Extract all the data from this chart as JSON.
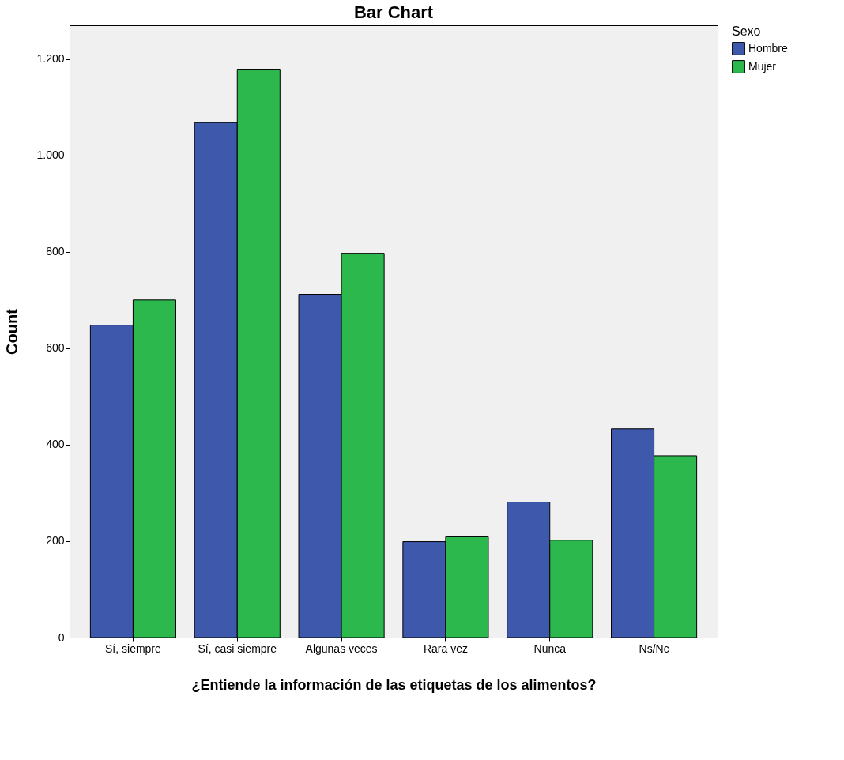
{
  "chart_data": {
    "type": "bar",
    "title": "Bar Chart",
    "xlabel": "¿Entiende la información de las etiquetas de los alimentos?",
    "ylabel": "Count",
    "legend_title": "Sexo",
    "categories": [
      "Sí, siempre",
      "Sí, casi siempre",
      "Algunas veces",
      "Rara vez",
      "Nunca",
      "Ns/Nc"
    ],
    "series": [
      {
        "name": "Hombre",
        "color": "#3e58ac",
        "values": [
          648,
          1068,
          712,
          199,
          281,
          433
        ]
      },
      {
        "name": "Mujer",
        "color": "#2db84d",
        "values": [
          700,
          1179,
          797,
          209,
          202,
          377
        ]
      }
    ],
    "ylim": [
      0,
      1270
    ],
    "yticks": [
      0,
      200,
      400,
      600,
      800,
      {
        "value": 1000,
        "label": "1.000"
      },
      {
        "value": 1200,
        "label": "1.200"
      }
    ],
    "grid": false,
    "legend": "top right"
  }
}
